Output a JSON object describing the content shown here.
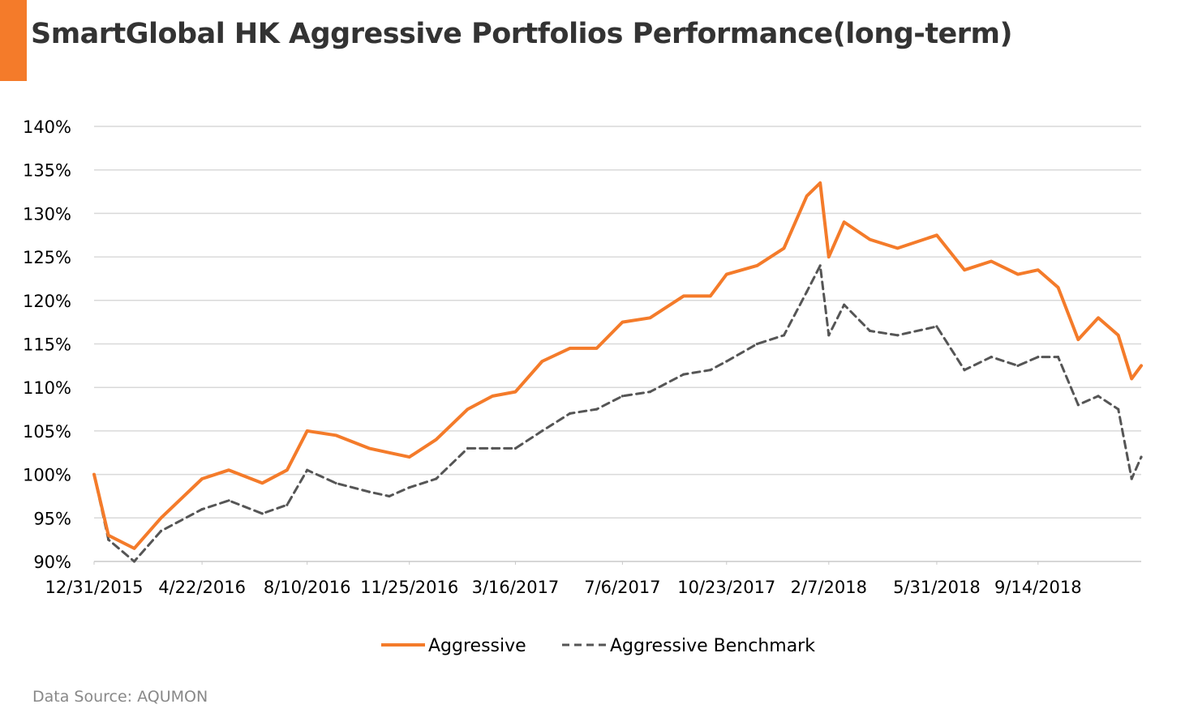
{
  "header": {
    "title": "SmartGlobal HK Aggressive Portfolios Performance(long-term)",
    "accent_color": "#F47B2A"
  },
  "footer": {
    "source": "Data Source: AQUMON"
  },
  "chart_data": {
    "type": "line",
    "title": "SmartGlobal HK Aggressive Portfolios Performance(long-term)",
    "xlabel": "",
    "ylabel": "",
    "grid": true,
    "legend_position": "bottom-center",
    "x_tick_labels": [
      "12/31/2015",
      "4/22/2016",
      "8/10/2016",
      "11/25/2016",
      "3/16/2017",
      "7/6/2017",
      "10/23/2017",
      "2/7/2018",
      "5/31/2018",
      "9/14/2018"
    ],
    "y_tick_labels": [
      "90%",
      "95%",
      "100%",
      "105%",
      "110%",
      "115%",
      "120%",
      "125%",
      "130%",
      "135%",
      "140%"
    ],
    "ylim": [
      90,
      140
    ],
    "y_ticks": [
      90,
      95,
      100,
      105,
      110,
      115,
      120,
      125,
      130,
      135,
      140
    ],
    "x": [
      "12/31/2015",
      "1/15/2016",
      "2/11/2016",
      "3/10/2016",
      "4/22/2016",
      "5/20/2016",
      "6/24/2016",
      "7/20/2016",
      "8/10/2016",
      "9/9/2016",
      "10/14/2016",
      "11/4/2016",
      "11/25/2016",
      "12/23/2016",
      "1/25/2017",
      "2/20/2017",
      "3/16/2017",
      "4/13/2017",
      "5/12/2017",
      "6/9/2017",
      "7/6/2017",
      "8/4/2017",
      "9/8/2017",
      "10/6/2017",
      "10/23/2017",
      "11/24/2017",
      "12/22/2017",
      "1/15/2018",
      "1/29/2018",
      "2/7/2018",
      "2/23/2018",
      "3/22/2018",
      "4/20/2018",
      "5/31/2018",
      "6/29/2018",
      "7/27/2018",
      "8/24/2018",
      "9/14/2018",
      "10/5/2018",
      "10/26/2018",
      "11/16/2018",
      "12/7/2018",
      "12/21/2018",
      "12/31/2018"
    ],
    "series": [
      {
        "name": "Aggressive",
        "color": "#F47B2A",
        "style": "solid",
        "values": [
          100.0,
          93.0,
          91.5,
          95.0,
          99.5,
          100.5,
          99.0,
          100.5,
          105.0,
          104.5,
          103.0,
          102.5,
          102.0,
          104.0,
          107.5,
          109.0,
          109.5,
          113.0,
          114.5,
          114.5,
          117.5,
          118.0,
          120.5,
          120.5,
          123.0,
          124.0,
          126.0,
          132.0,
          133.5,
          125.0,
          129.0,
          127.0,
          126.0,
          127.5,
          123.5,
          124.5,
          123.0,
          123.5,
          121.5,
          115.5,
          118.0,
          116.0,
          111.0,
          112.5
        ]
      },
      {
        "name": "Aggressive Benchmark",
        "color": "#555555",
        "style": "dashed",
        "values": [
          100.0,
          92.5,
          90.0,
          93.5,
          96.0,
          97.0,
          95.5,
          96.5,
          100.5,
          99.0,
          98.0,
          97.5,
          98.5,
          99.5,
          103.0,
          103.0,
          103.0,
          105.0,
          107.0,
          107.5,
          109.0,
          109.5,
          111.5,
          112.0,
          113.0,
          115.0,
          116.0,
          121.0,
          124.0,
          116.0,
          119.5,
          116.5,
          116.0,
          117.0,
          112.0,
          113.5,
          112.5,
          113.5,
          113.5,
          108.0,
          109.0,
          107.5,
          99.5,
          102.0
        ]
      }
    ]
  }
}
